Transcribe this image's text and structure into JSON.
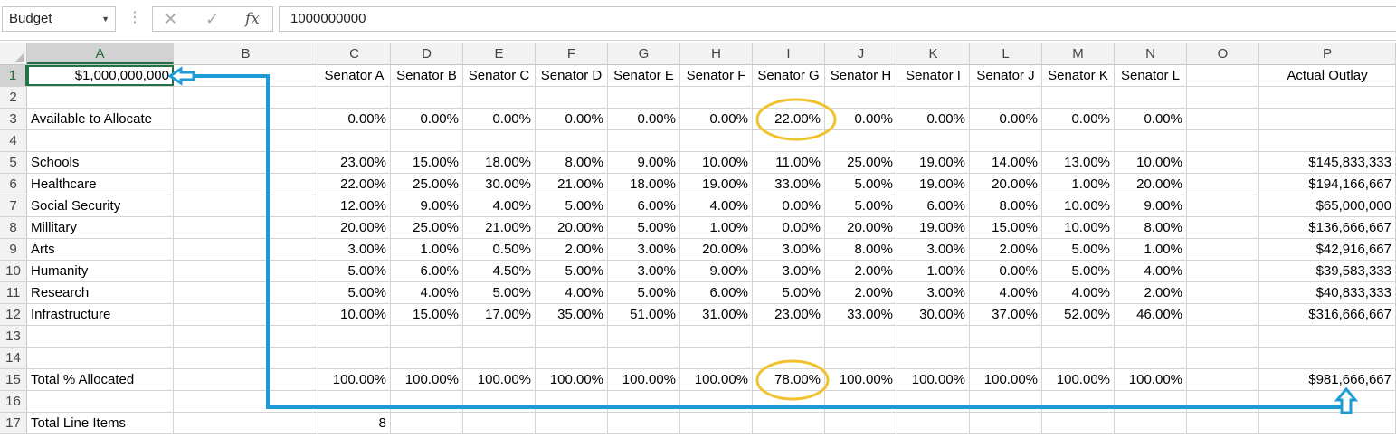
{
  "formula_bar": {
    "name_box": "Budget",
    "cancel_icon": "✕",
    "enter_icon": "✓",
    "fx_label": "fx",
    "formula": "1000000000"
  },
  "columns": [
    "A",
    "B",
    "C",
    "D",
    "E",
    "F",
    "G",
    "H",
    "I",
    "J",
    "K",
    "L",
    "M",
    "N",
    "O",
    "P"
  ],
  "selected_column": "A",
  "selected_row": "1",
  "rows": [
    {
      "num": "1",
      "A": "$1,000,000,000",
      "B": "",
      "C": "Senator A",
      "D": "Senator B",
      "E": "Senator C",
      "F": "Senator D",
      "G": "Senator E",
      "H": "Senator F",
      "I": "Senator G",
      "J": "Senator H",
      "K": "Senator I",
      "L": "Senator J",
      "M": "Senator K",
      "N": "Senator L",
      "O": "",
      "P": "Actual Outlay"
    },
    {
      "num": "2"
    },
    {
      "num": "3",
      "A": "Available to Allocate",
      "C": "0.00%",
      "D": "0.00%",
      "E": "0.00%",
      "F": "0.00%",
      "G": "0.00%",
      "H": "0.00%",
      "I": "22.00%",
      "J": "0.00%",
      "K": "0.00%",
      "L": "0.00%",
      "M": "0.00%",
      "N": "0.00%"
    },
    {
      "num": "4"
    },
    {
      "num": "5",
      "A": "Schools",
      "C": "23.00%",
      "D": "15.00%",
      "E": "18.00%",
      "F": "8.00%",
      "G": "9.00%",
      "H": "10.00%",
      "I": "11.00%",
      "J": "25.00%",
      "K": "19.00%",
      "L": "14.00%",
      "M": "13.00%",
      "N": "10.00%",
      "P": "$145,833,333"
    },
    {
      "num": "6",
      "A": "Healthcare",
      "C": "22.00%",
      "D": "25.00%",
      "E": "30.00%",
      "F": "21.00%",
      "G": "18.00%",
      "H": "19.00%",
      "I": "33.00%",
      "J": "5.00%",
      "K": "19.00%",
      "L": "20.00%",
      "M": "1.00%",
      "N": "20.00%",
      "P": "$194,166,667"
    },
    {
      "num": "7",
      "A": "Social Security",
      "C": "12.00%",
      "D": "9.00%",
      "E": "4.00%",
      "F": "5.00%",
      "G": "6.00%",
      "H": "4.00%",
      "I": "0.00%",
      "J": "5.00%",
      "K": "6.00%",
      "L": "8.00%",
      "M": "10.00%",
      "N": "9.00%",
      "P": "$65,000,000"
    },
    {
      "num": "8",
      "A": "Millitary",
      "C": "20.00%",
      "D": "25.00%",
      "E": "21.00%",
      "F": "20.00%",
      "G": "5.00%",
      "H": "1.00%",
      "I": "0.00%",
      "J": "20.00%",
      "K": "19.00%",
      "L": "15.00%",
      "M": "10.00%",
      "N": "8.00%",
      "P": "$136,666,667"
    },
    {
      "num": "9",
      "A": "Arts",
      "C": "3.00%",
      "D": "1.00%",
      "E": "0.50%",
      "F": "2.00%",
      "G": "3.00%",
      "H": "20.00%",
      "I": "3.00%",
      "J": "8.00%",
      "K": "3.00%",
      "L": "2.00%",
      "M": "5.00%",
      "N": "1.00%",
      "P": "$42,916,667"
    },
    {
      "num": "10",
      "A": "Humanity",
      "C": "5.00%",
      "D": "6.00%",
      "E": "4.50%",
      "F": "5.00%",
      "G": "3.00%",
      "H": "9.00%",
      "I": "3.00%",
      "J": "2.00%",
      "K": "1.00%",
      "L": "0.00%",
      "M": "5.00%",
      "N": "4.00%",
      "P": "$39,583,333"
    },
    {
      "num": "11",
      "A": "Research",
      "C": "5.00%",
      "D": "4.00%",
      "E": "5.00%",
      "F": "4.00%",
      "G": "5.00%",
      "H": "6.00%",
      "I": "5.00%",
      "J": "2.00%",
      "K": "3.00%",
      "L": "4.00%",
      "M": "4.00%",
      "N": "2.00%",
      "P": "$40,833,333"
    },
    {
      "num": "12",
      "A": "Infrastructure",
      "C": "10.00%",
      "D": "15.00%",
      "E": "17.00%",
      "F": "35.00%",
      "G": "51.00%",
      "H": "31.00%",
      "I": "23.00%",
      "J": "33.00%",
      "K": "30.00%",
      "L": "37.00%",
      "M": "52.00%",
      "N": "46.00%",
      "P": "$316,666,667"
    },
    {
      "num": "13"
    },
    {
      "num": "14"
    },
    {
      "num": "15",
      "A": "Total % Allocated",
      "C": "100.00%",
      "D": "100.00%",
      "E": "100.00%",
      "F": "100.00%",
      "G": "100.00%",
      "H": "100.00%",
      "I": "78.00%",
      "J": "100.00%",
      "K": "100.00%",
      "L": "100.00%",
      "M": "100.00%",
      "N": "100.00%",
      "P": "$981,666,667"
    },
    {
      "num": "16"
    },
    {
      "num": "17",
      "A": "Total Line Items",
      "C": "8"
    }
  ],
  "annotation_colors": {
    "highlight_circle": "#f2c12e",
    "connector_arrow": "#1e9ad6"
  }
}
